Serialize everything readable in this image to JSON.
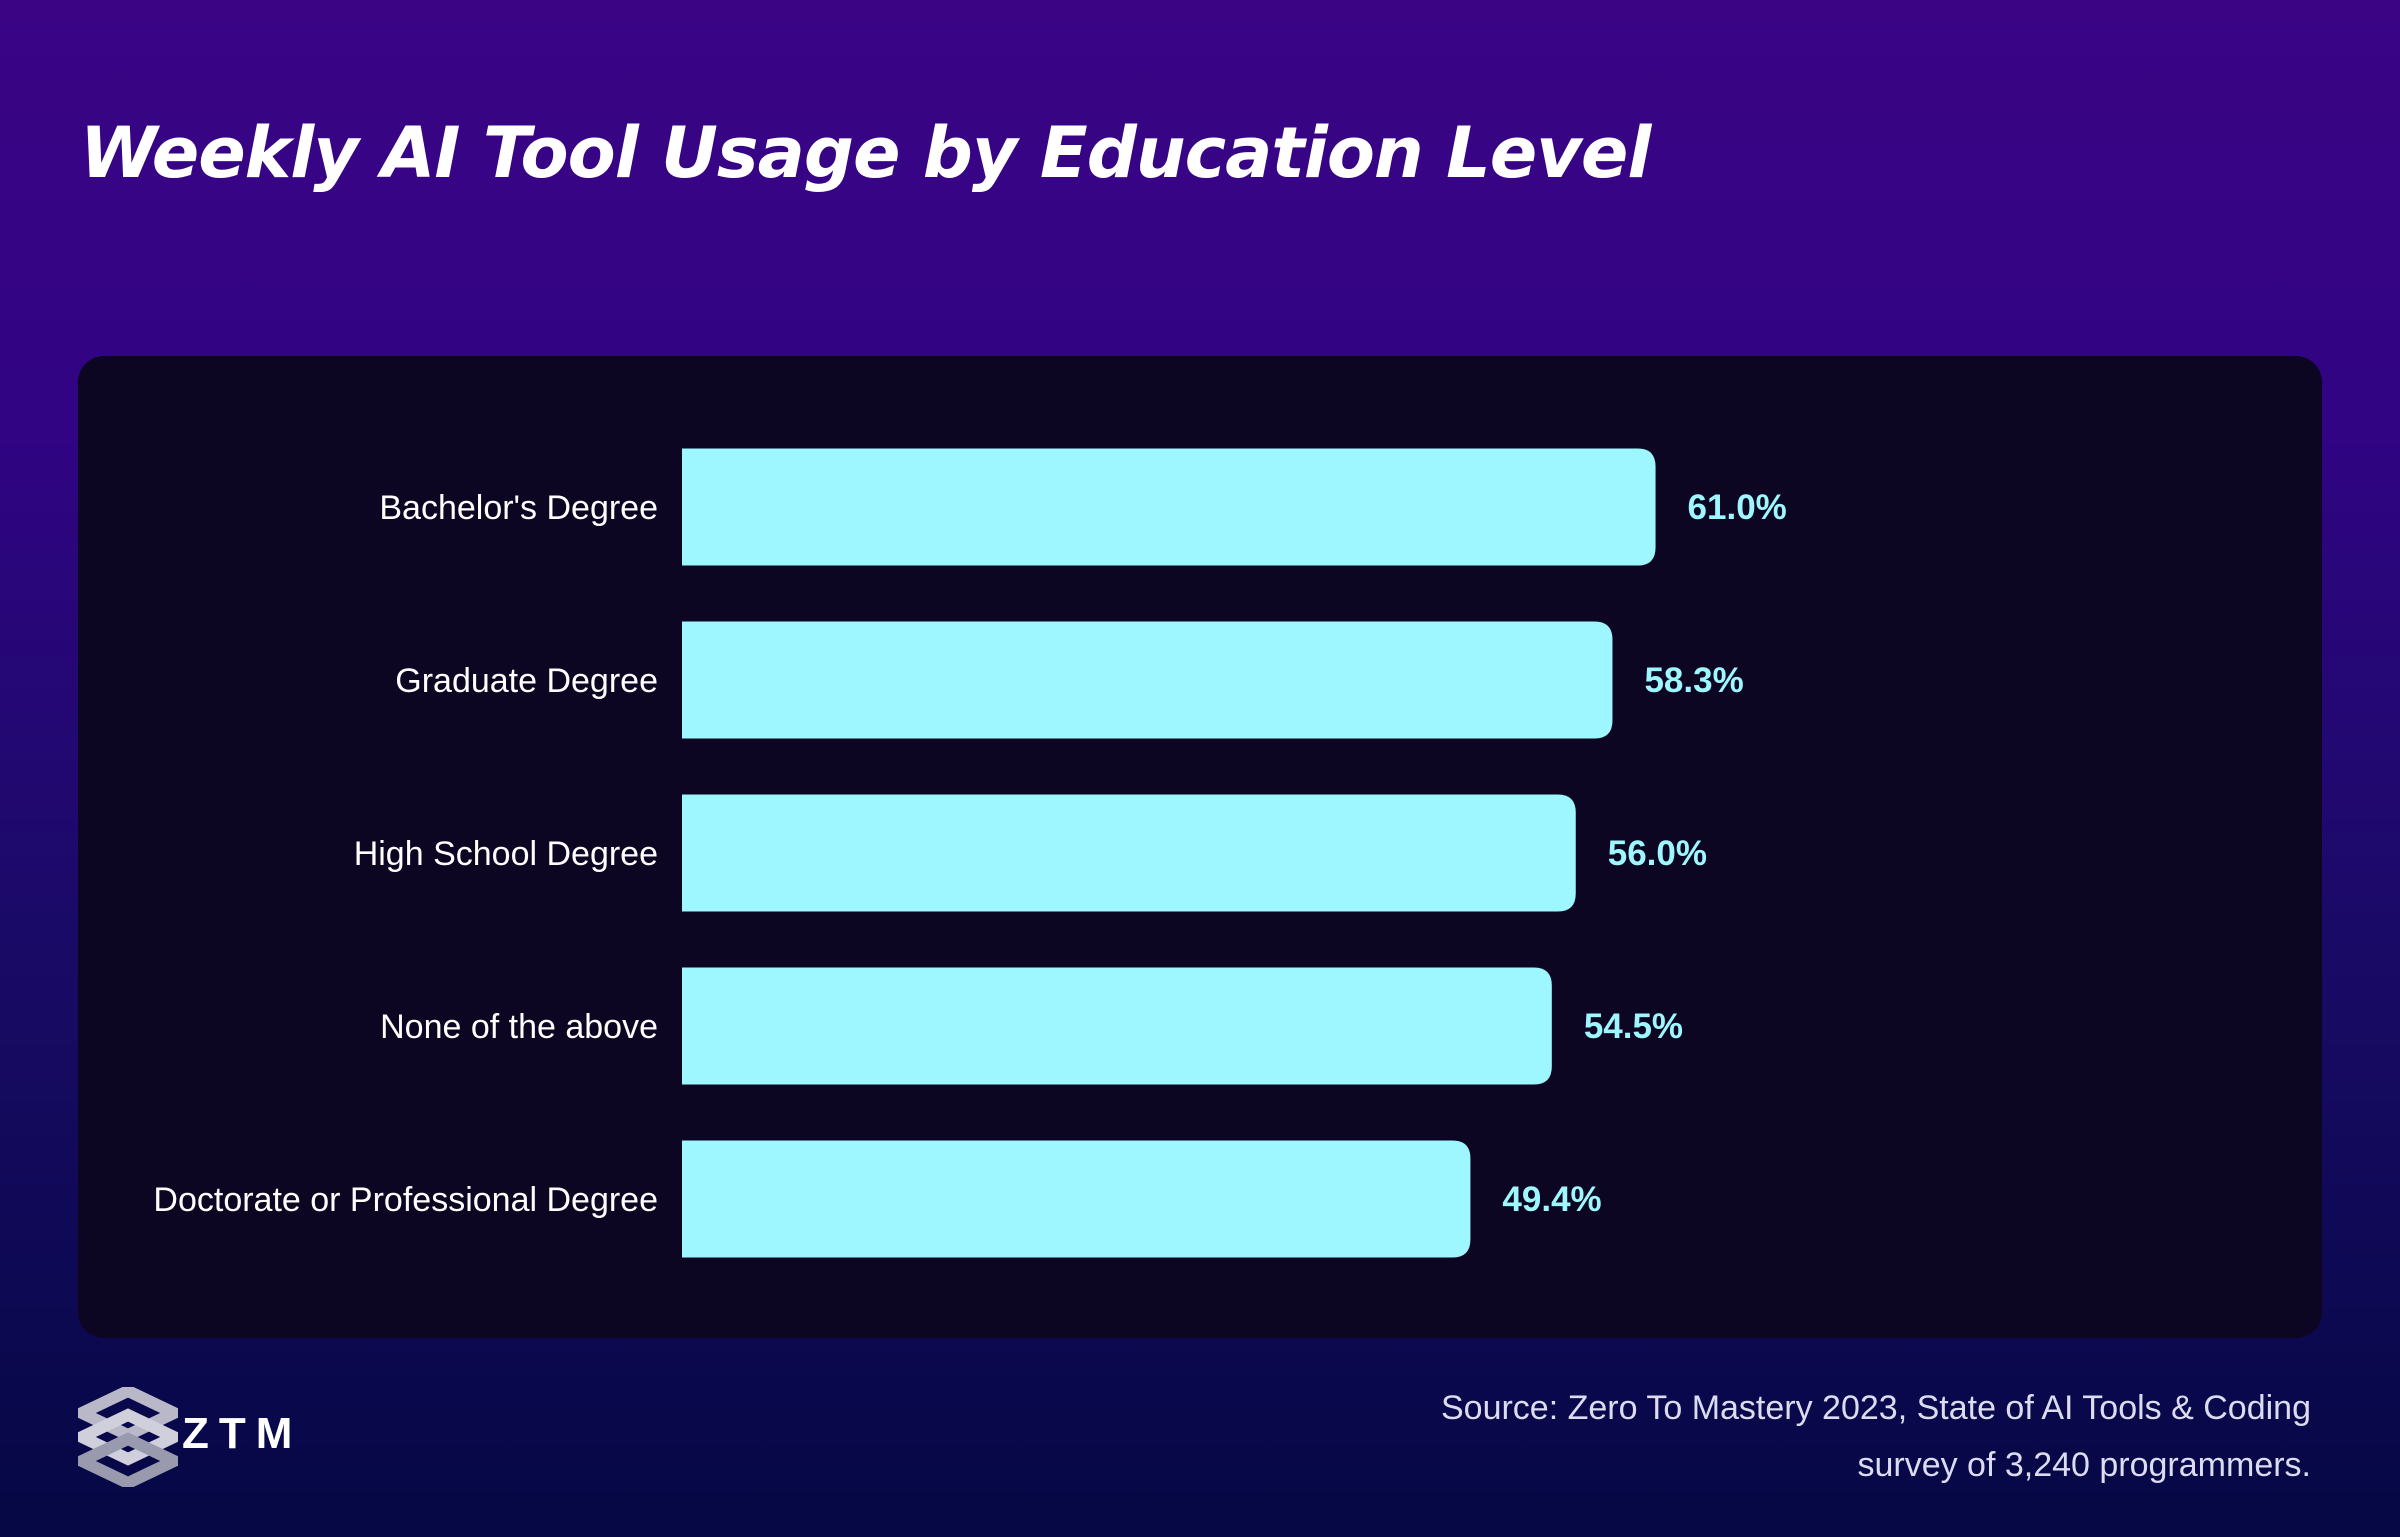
{
  "title": "Weekly AI Tool Usage by Education Level",
  "chart_data": {
    "type": "bar",
    "orientation": "horizontal",
    "title": "Weekly AI Tool Usage by Education Level",
    "categories": [
      "Bachelor's Degree",
      "Graduate Degree",
      "High School Degree",
      "None of the above",
      "Doctorate or Professional Degree"
    ],
    "values": [
      61.0,
      58.3,
      56.0,
      54.5,
      49.4
    ],
    "value_labels": [
      "61.0%",
      "58.3%",
      "56.0%",
      "54.5%",
      "49.4%"
    ],
    "xlabel": "",
    "ylabel": "",
    "xlim": [
      0,
      100
    ],
    "grid": false,
    "bar_color": "#9ef7ff"
  },
  "source": {
    "line1": "Source: Zero To Mastery 2023, State of AI Tools & Coding",
    "line2": "survey of 3,240 programmers."
  },
  "logo": {
    "text": "ZTM",
    "icon": "ztm-cube-logo-icon"
  },
  "colors": {
    "background_top": "#3a0485",
    "background_bottom": "#050844",
    "panel": "#0c0622",
    "bar": "#9ef7ff",
    "value_text": "#9ef7ff"
  }
}
